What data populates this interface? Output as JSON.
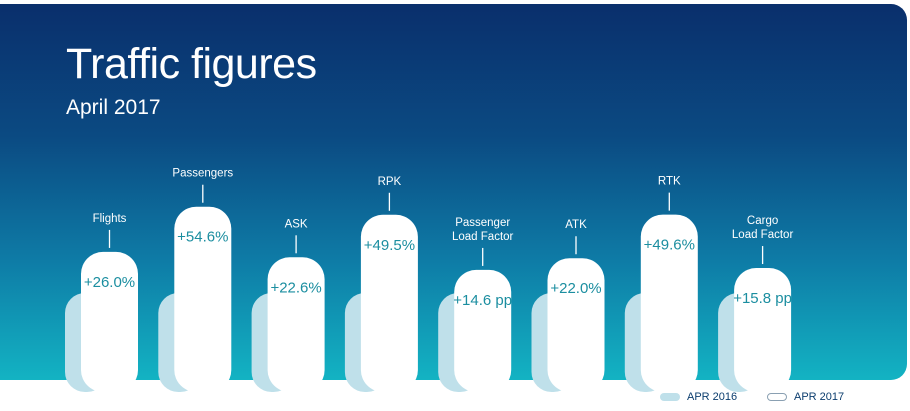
{
  "header": {
    "title": "Traffic figures",
    "subtitle": "April 2017"
  },
  "legend": {
    "apr2016": "APR 2016",
    "apr2017": "APR 2017"
  },
  "colors": {
    "bar_2016": "#bfe0ea",
    "bar_2017": "#ffffff",
    "value_text": "#1b8ea0",
    "label_text": "#ffffff"
  },
  "chart_data": {
    "type": "bar",
    "categories": [
      "Flights",
      "Passengers",
      "ASK",
      "RPK",
      "Passenger Load Factor",
      "ATK",
      "RTK",
      "Cargo Load Factor"
    ],
    "category_lines": [
      [
        "Flights"
      ],
      [
        "Passengers"
      ],
      [
        "ASK"
      ],
      [
        "RPK"
      ],
      [
        "Passenger",
        "Load Factor"
      ],
      [
        "ATK"
      ],
      [
        "RTK"
      ],
      [
        "Cargo",
        "Load Factor"
      ]
    ],
    "series": [
      {
        "name": "APR 2016",
        "values": [
          100,
          100,
          100,
          100,
          100,
          100,
          100,
          100
        ]
      },
      {
        "name": "APR 2017",
        "values": [
          126.0,
          154.6,
          122.6,
          149.5,
          114.6,
          122.0,
          149.6,
          115.8
        ]
      }
    ],
    "value_labels": [
      "+26.0%",
      "+54.6%",
      "+22.6%",
      "+49.5%",
      "+14.6 pp",
      "+22.0%",
      "+49.6%",
      "+15.8 pp"
    ],
    "legend_position": "bottom-right",
    "grid": false
  }
}
